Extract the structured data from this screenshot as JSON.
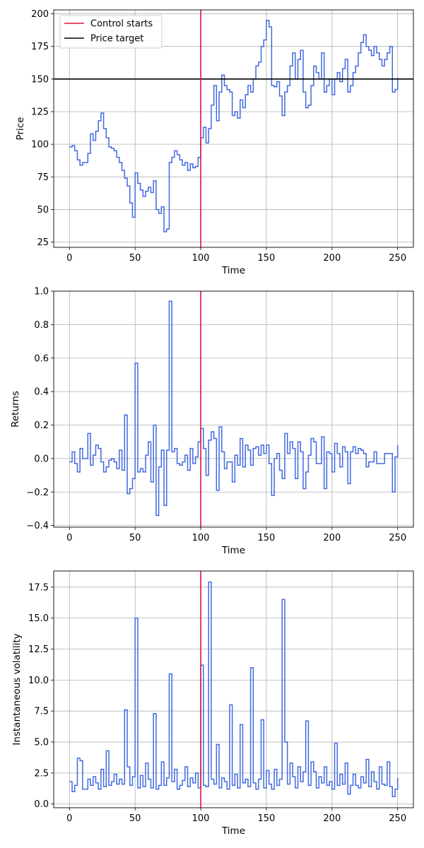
{
  "colors": {
    "series": "#4169e1",
    "control": "#dc143c",
    "target": "#000000",
    "grid": "#b0b0b0"
  },
  "chart_data": [
    {
      "type": "line",
      "step": true,
      "xlabel": "Time",
      "ylabel": "Price",
      "xlim": [
        -12,
        262
      ],
      "ylim": [
        21,
        203
      ],
      "xticks": [
        0,
        50,
        100,
        150,
        200,
        250
      ],
      "yticks": [
        25,
        50,
        75,
        100,
        125,
        150,
        175,
        200
      ],
      "grid": true,
      "legend": {
        "placement": "top-left",
        "entries": [
          {
            "label": "Control starts",
            "color": "#dc143c"
          },
          {
            "label": "Price target",
            "color": "#000000"
          }
        ]
      },
      "vline": {
        "x": 100,
        "label": "Control starts"
      },
      "hline": {
        "y": 150,
        "label": "Price target"
      },
      "series": [
        {
          "x": [
            0,
            2,
            4,
            6,
            8,
            10,
            14,
            16,
            18,
            20,
            22,
            24,
            26,
            28,
            30,
            32,
            34,
            36,
            38,
            40,
            42,
            44,
            46,
            48,
            50,
            52,
            54,
            56,
            58,
            60,
            62,
            64,
            66,
            68,
            70,
            72,
            74,
            76,
            78,
            80,
            82,
            84,
            86,
            88,
            90,
            92,
            94,
            96,
            98,
            100,
            102,
            104,
            106,
            108,
            110,
            112,
            114,
            116,
            118,
            120,
            122,
            124,
            126,
            128,
            130,
            132,
            134,
            136,
            138,
            140,
            142,
            144,
            146,
            148,
            150,
            152,
            154,
            156,
            158,
            160,
            162,
            164,
            166,
            168,
            170,
            172,
            174,
            176,
            178,
            180,
            182,
            184,
            186,
            188,
            190,
            192,
            194,
            196,
            198,
            200,
            202,
            204,
            206,
            208,
            210,
            212,
            214,
            216,
            218,
            220,
            222,
            224,
            226,
            228,
            230,
            232,
            234,
            236,
            238,
            240,
            242,
            244,
            246,
            248,
            250
          ],
          "values": [
            98,
            99,
            95,
            88,
            84,
            86,
            93,
            108,
            103,
            110,
            118,
            124,
            112,
            105,
            98,
            97,
            95,
            90,
            86,
            80,
            74,
            68,
            55,
            44,
            78,
            70,
            65,
            60,
            64,
            67,
            63,
            72,
            50,
            47,
            52,
            33,
            35,
            86,
            90,
            95,
            92,
            88,
            84,
            86,
            80,
            85,
            82,
            83,
            90,
            105,
            113,
            101,
            112,
            130,
            145,
            118,
            140,
            153,
            145,
            142,
            140,
            122,
            125,
            120,
            134,
            128,
            138,
            145,
            140,
            150,
            160,
            163,
            175,
            180,
            195,
            190,
            145,
            144,
            148,
            137,
            122,
            140,
            145,
            160,
            170,
            150,
            165,
            172,
            140,
            128,
            130,
            145,
            160,
            155,
            150,
            170,
            140,
            145,
            150,
            138,
            150,
            155,
            148,
            158,
            165,
            140,
            145,
            155,
            160,
            170,
            178,
            184,
            175,
            172,
            168,
            175,
            170,
            165,
            160,
            165,
            170,
            175,
            140,
            142,
            151
          ]
        }
      ]
    },
    {
      "type": "line",
      "step": true,
      "xlabel": "Time",
      "ylabel": "Returns",
      "xlim": [
        -12,
        262
      ],
      "ylim": [
        -0.41,
        1.0
      ],
      "xticks": [
        0,
        50,
        100,
        150,
        200,
        250
      ],
      "yticks": [
        -0.4,
        -0.2,
        0.0,
        0.2,
        0.4,
        0.6,
        0.8,
        1.0
      ],
      "grid": true,
      "vline": {
        "x": 100,
        "label": "Control starts"
      },
      "series": [
        {
          "x": [
            0,
            2,
            4,
            6,
            8,
            10,
            14,
            16,
            18,
            20,
            22,
            24,
            26,
            28,
            30,
            32,
            34,
            36,
            38,
            40,
            42,
            44,
            46,
            48,
            50,
            52,
            54,
            56,
            58,
            60,
            62,
            64,
            66,
            68,
            70,
            72,
            74,
            76,
            78,
            80,
            82,
            84,
            86,
            88,
            90,
            92,
            94,
            96,
            98,
            100,
            102,
            104,
            106,
            108,
            110,
            112,
            114,
            116,
            118,
            120,
            122,
            124,
            126,
            128,
            130,
            132,
            134,
            136,
            138,
            140,
            142,
            144,
            146,
            148,
            150,
            152,
            154,
            156,
            158,
            160,
            162,
            164,
            166,
            168,
            170,
            172,
            174,
            176,
            178,
            180,
            182,
            184,
            186,
            188,
            190,
            192,
            194,
            196,
            198,
            200,
            202,
            204,
            206,
            208,
            210,
            212,
            214,
            216,
            218,
            220,
            222,
            224,
            226,
            228,
            230,
            232,
            234,
            236,
            238,
            240,
            242,
            244,
            246,
            248,
            250
          ],
          "values": [
            -0.02,
            0.04,
            -0.03,
            -0.08,
            0.06,
            0.0,
            0.15,
            -0.04,
            0.02,
            0.08,
            0.06,
            -0.02,
            -0.08,
            -0.05,
            -0.01,
            0.0,
            -0.02,
            -0.06,
            0.05,
            -0.07,
            0.26,
            -0.21,
            -0.18,
            -0.12,
            0.57,
            -0.08,
            -0.06,
            -0.08,
            0.02,
            0.1,
            -0.14,
            0.2,
            -0.34,
            -0.05,
            0.05,
            -0.28,
            0.05,
            0.94,
            0.04,
            0.06,
            -0.03,
            -0.04,
            -0.02,
            0.02,
            -0.07,
            0.06,
            -0.03,
            0.01,
            0.1,
            0.18,
            0.06,
            -0.1,
            0.11,
            0.16,
            0.12,
            -0.19,
            0.19,
            0.04,
            -0.06,
            -0.02,
            -0.02,
            -0.14,
            0.02,
            -0.04,
            0.12,
            -0.05,
            0.08,
            0.05,
            -0.04,
            0.06,
            0.07,
            0.02,
            0.08,
            0.03,
            0.08,
            -0.03,
            -0.22,
            0.0,
            0.03,
            -0.07,
            -0.12,
            0.15,
            0.03,
            0.1,
            0.06,
            -0.12,
            0.1,
            0.04,
            -0.18,
            -0.08,
            0.02,
            0.12,
            0.1,
            -0.03,
            -0.03,
            0.13,
            -0.18,
            0.04,
            0.03,
            -0.08,
            0.09,
            0.03,
            -0.05,
            0.07,
            0.04,
            -0.15,
            0.04,
            0.07,
            0.03,
            0.06,
            0.05,
            0.03,
            -0.05,
            -0.02,
            -0.02,
            0.04,
            -0.03,
            -0.03,
            -0.03,
            0.03,
            0.03,
            0.03,
            -0.2,
            0.01,
            0.08
          ]
        }
      ]
    },
    {
      "type": "line",
      "step": true,
      "xlabel": "Time",
      "ylabel": "Instantaneous volatility",
      "xlim": [
        -12,
        262
      ],
      "ylim": [
        -0.3,
        18.8
      ],
      "xticks": [
        0,
        50,
        100,
        150,
        200,
        250
      ],
      "yticks": [
        0.0,
        2.5,
        5.0,
        7.5,
        10.0,
        12.5,
        15.0,
        17.5
      ],
      "grid": true,
      "vline": {
        "x": 100,
        "label": "Control starts"
      },
      "series": [
        {
          "x": [
            0,
            2,
            4,
            6,
            8,
            10,
            14,
            16,
            18,
            20,
            22,
            24,
            26,
            28,
            30,
            32,
            34,
            36,
            38,
            40,
            42,
            44,
            46,
            48,
            50,
            52,
            54,
            56,
            58,
            60,
            62,
            64,
            66,
            68,
            70,
            72,
            74,
            76,
            78,
            80,
            82,
            84,
            86,
            88,
            90,
            92,
            94,
            96,
            98,
            100,
            102,
            104,
            106,
            108,
            110,
            112,
            114,
            116,
            118,
            120,
            122,
            124,
            126,
            128,
            130,
            132,
            134,
            136,
            138,
            140,
            142,
            144,
            146,
            148,
            150,
            152,
            154,
            156,
            158,
            160,
            162,
            164,
            166,
            168,
            170,
            172,
            174,
            176,
            178,
            180,
            182,
            184,
            186,
            188,
            190,
            192,
            194,
            196,
            198,
            200,
            202,
            204,
            206,
            208,
            210,
            212,
            214,
            216,
            218,
            220,
            222,
            224,
            226,
            228,
            230,
            232,
            234,
            236,
            238,
            240,
            242,
            244,
            246,
            248,
            250
          ],
          "values": [
            1.8,
            1.0,
            1.5,
            3.7,
            3.5,
            1.2,
            2.0,
            1.5,
            2.2,
            1.7,
            1.2,
            2.8,
            1.4,
            4.3,
            1.5,
            1.8,
            2.4,
            1.6,
            2.0,
            1.6,
            7.6,
            3.0,
            1.5,
            2.2,
            15.0,
            1.3,
            2.3,
            1.4,
            3.3,
            2.0,
            1.3,
            7.3,
            1.2,
            1.5,
            3.4,
            1.5,
            2.1,
            10.5,
            1.8,
            2.8,
            1.2,
            1.5,
            1.9,
            3.0,
            1.4,
            2.1,
            1.7,
            2.5,
            1.3,
            11.2,
            1.5,
            1.4,
            17.9,
            2.0,
            1.6,
            4.8,
            1.3,
            2.1,
            1.8,
            1.2,
            8.0,
            1.5,
            2.4,
            1.3,
            6.4,
            1.7,
            2.0,
            1.4,
            11.0,
            1.7,
            1.2,
            2.0,
            6.8,
            1.3,
            2.7,
            1.6,
            1.2,
            2.8,
            1.5,
            2.0,
            16.5,
            5.0,
            1.6,
            3.3,
            2.2,
            1.3,
            3.0,
            1.8,
            2.6,
            6.7,
            1.5,
            3.4,
            2.6,
            1.3,
            2.2,
            1.7,
            3.0,
            1.5,
            1.8,
            1.2,
            4.9,
            1.5,
            2.4,
            1.6,
            3.3,
            0.8,
            1.5,
            2.4,
            1.5,
            1.3,
            2.2,
            1.7,
            3.6,
            1.4,
            2.6,
            1.8,
            1.2,
            3.0,
            1.6,
            1.5,
            3.4,
            1.4,
            0.6,
            1.2,
            2.1
          ]
        }
      ]
    }
  ]
}
